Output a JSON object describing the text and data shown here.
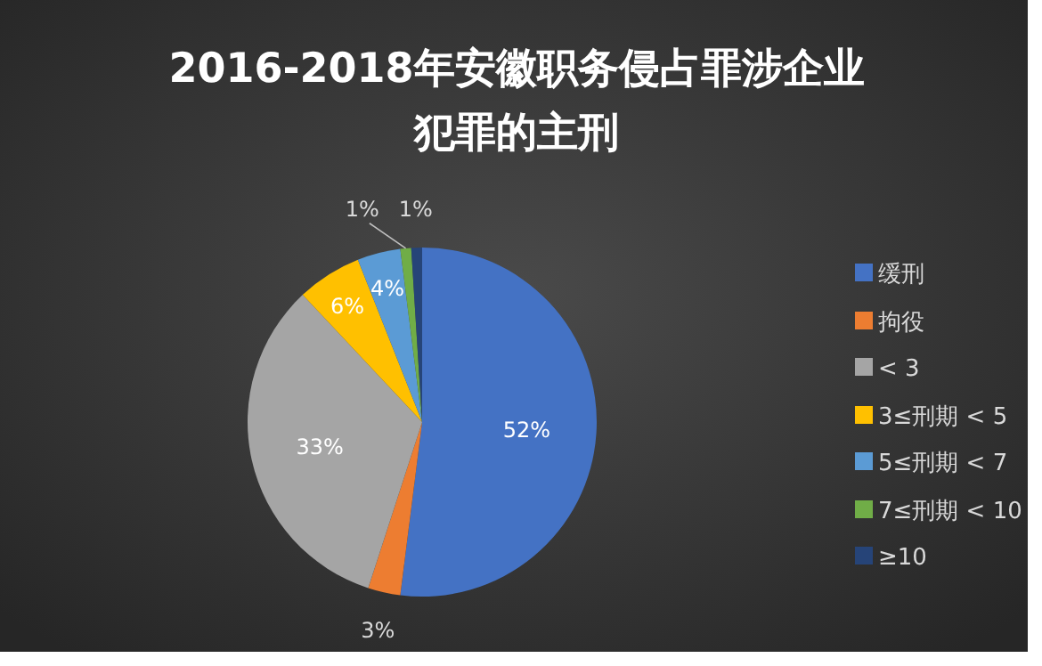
{
  "chart_data": {
    "type": "pie",
    "title": "2016-2018年安徽职务侵占罪涉企业犯罪的主刑",
    "categories": [
      "缓刑",
      "拘役",
      "< 3",
      "3≤刑期 < 5",
      "5≤刑期 < 7",
      "7≤刑期 < 10",
      "≥10"
    ],
    "values": [
      52,
      3,
      33,
      6,
      4,
      1,
      1
    ],
    "value_labels": [
      "52%",
      "3%",
      "33%",
      "6%",
      "4%",
      "1%",
      "1%"
    ],
    "colors": [
      "#4472c4",
      "#ed7d31",
      "#a5a5a5",
      "#ffc000",
      "#5b9bd5",
      "#70ad47",
      "#264478"
    ],
    "legend": "right"
  }
}
